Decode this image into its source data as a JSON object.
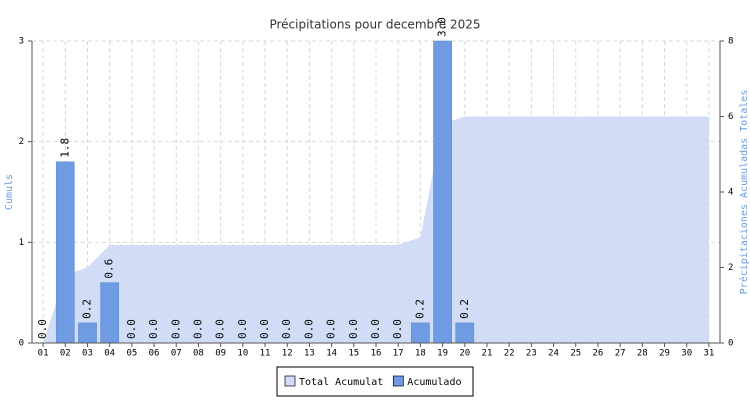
{
  "chart_data": {
    "type": "bar",
    "title": "Précipitations pour decembre 2025",
    "y_label": "Cumuls",
    "y2_label": "Précipitaciones Acumuladas Totales",
    "categories": [
      "01",
      "02",
      "03",
      "04",
      "05",
      "06",
      "07",
      "08",
      "09",
      "10",
      "11",
      "12",
      "13",
      "14",
      "15",
      "16",
      "17",
      "18",
      "19",
      "20",
      "21",
      "22",
      "23",
      "24",
      "25",
      "26",
      "27",
      "28",
      "29",
      "30",
      "31"
    ],
    "series": [
      {
        "name": "Total Acumulat",
        "type": "area",
        "axis": "y2",
        "color": "#d1ddf7",
        "values": [
          0.0,
          1.8,
          2.0,
          2.6,
          2.6,
          2.6,
          2.6,
          2.6,
          2.6,
          2.6,
          2.6,
          2.6,
          2.6,
          2.6,
          2.6,
          2.6,
          2.6,
          2.8,
          5.8,
          6.0,
          6.0,
          6.0,
          6.0,
          6.0,
          6.0,
          6.0,
          6.0,
          6.0,
          6.0,
          6.0,
          6.0
        ]
      },
      {
        "name": "Acumulado",
        "type": "bar",
        "color": "#6f9be2",
        "values": [
          0.0,
          1.8,
          0.2,
          0.6,
          0.0,
          0.0,
          0.0,
          0.0,
          0.0,
          0.0,
          0.0,
          0.0,
          0.0,
          0.0,
          0.0,
          0.0,
          0.0,
          0.2,
          3.0,
          0.2,
          null,
          null,
          null,
          null,
          null,
          null,
          null,
          null,
          null,
          null,
          null
        ],
        "value_labels": [
          "0.0",
          "1.8",
          "0.2",
          "0.6",
          "0.0",
          "0.0",
          "0.0",
          "0.0",
          "0.0",
          "0.0",
          "0.0",
          "0.0",
          "0.0",
          "0.0",
          "0.0",
          "0.0",
          "0.0",
          "0.2",
          "3.0",
          "0.2",
          null,
          null,
          null,
          null,
          null,
          null,
          null,
          null,
          null,
          null,
          null
        ]
      }
    ],
    "ylim": [
      0,
      3
    ],
    "yticks": [
      0,
      1,
      2,
      3
    ],
    "y2lim": [
      0,
      8
    ],
    "y2ticks": [
      0,
      2,
      4,
      6,
      8
    ],
    "grid": true,
    "legend": "bottom"
  }
}
